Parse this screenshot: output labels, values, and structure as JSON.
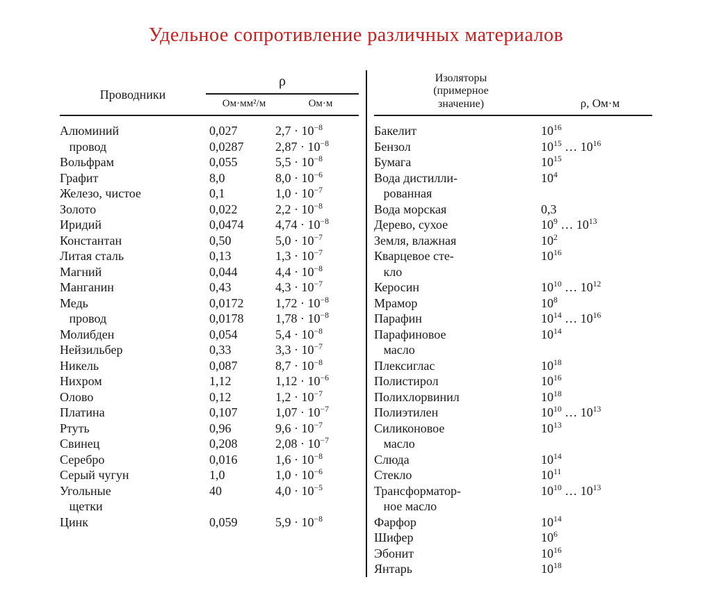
{
  "colors": {
    "title": "#c42020",
    "text": "#1a1a1a",
    "background": "#ffffff",
    "rule": "#1a1a1a"
  },
  "typography": {
    "title_fontsize": 28,
    "body_fontsize": 18,
    "header_fontsize": 18,
    "font_family": "Times New Roman, serif"
  },
  "title": "Удельное сопротивление различных материалов",
  "left": {
    "header_name": "Проводники",
    "rho_symbol": "ρ",
    "unit1": "Ом·мм²/м",
    "unit2": "Ом·м",
    "rows": [
      {
        "name": "Алюминий",
        "v1": "0,027",
        "mant": "2,7",
        "exp": "−8"
      },
      {
        "name": "   провод",
        "v1": "0,0287",
        "mant": "2,87",
        "exp": "−8"
      },
      {
        "name": "Вольфрам",
        "v1": "0,055",
        "mant": "5,5",
        "exp": "−8"
      },
      {
        "name": "Графит",
        "v1": "8,0",
        "mant": "8,0",
        "exp": "−6"
      },
      {
        "name": "Железо, чистое",
        "v1": "0,1",
        "mant": "1,0",
        "exp": "−7"
      },
      {
        "name": "Золото",
        "v1": "0,022",
        "mant": "2,2",
        "exp": "−8"
      },
      {
        "name": "Иридий",
        "v1": "0,0474",
        "mant": "4,74",
        "exp": "−8"
      },
      {
        "name": "Константан",
        "v1": "0,50",
        "mant": "5,0",
        "exp": "−7"
      },
      {
        "name": "Литая сталь",
        "v1": "0,13",
        "mant": "1,3",
        "exp": "−7"
      },
      {
        "name": "Магний",
        "v1": "0,044",
        "mant": "4,4",
        "exp": "−8"
      },
      {
        "name": "Манганин",
        "v1": "0,43",
        "mant": "4,3",
        "exp": "−7"
      },
      {
        "name": "Медь",
        "v1": "0,0172",
        "mant": "1,72",
        "exp": "−8"
      },
      {
        "name": "   провод",
        "v1": "0,0178",
        "mant": "1,78",
        "exp": "−8"
      },
      {
        "name": "Молибден",
        "v1": "0,054",
        "mant": "5,4",
        "exp": "−8"
      },
      {
        "name": "Нейзильбер",
        "v1": "0,33",
        "mant": "3,3",
        "exp": "−7"
      },
      {
        "name": "Никель",
        "v1": "0,087",
        "mant": "8,7",
        "exp": "−8"
      },
      {
        "name": "Нихром",
        "v1": "1,12",
        "mant": "1,12",
        "exp": "−6"
      },
      {
        "name": "Олово",
        "v1": "0,12",
        "mant": "1,2",
        "exp": "−7"
      },
      {
        "name": "Платина",
        "v1": "0,107",
        "mant": "1,07",
        "exp": "−7"
      },
      {
        "name": "Ртуть",
        "v1": "0,96",
        "mant": "9,6",
        "exp": "−7"
      },
      {
        "name": "Свинец",
        "v1": "0,208",
        "mant": "2,08",
        "exp": "−7"
      },
      {
        "name": "Серебро",
        "v1": "0,016",
        "mant": "1,6",
        "exp": "−8"
      },
      {
        "name": "Серый чугун",
        "v1": "1,0",
        "mant": "1,0",
        "exp": "−6"
      },
      {
        "name": "Угольные",
        "v1": "40",
        "mant": "4,0",
        "exp": "−5"
      },
      {
        "name": "   щетки",
        "v1": "",
        "mant": "",
        "exp": ""
      },
      {
        "name": "Цинк",
        "v1": "0,059",
        "mant": "5,9",
        "exp": "−8"
      }
    ]
  },
  "right": {
    "header_name": "Изоляторы\n(примерное\nзначение)",
    "rho_label": "ρ, Ом·м",
    "rows": [
      {
        "name": "Бакелит",
        "exp1": "16",
        "exp2": ""
      },
      {
        "name": "Бензол",
        "exp1": "15",
        "exp2": "16"
      },
      {
        "name": "Бумага",
        "exp1": "15",
        "exp2": ""
      },
      {
        "name": "Вода дистилли-",
        "exp1": "4",
        "exp2": ""
      },
      {
        "name": "   рованная",
        "exp1": "",
        "exp2": ""
      },
      {
        "name": "Вода морская",
        "plain": "0,3"
      },
      {
        "name": "Дерево, сухое",
        "exp1": "9",
        "exp2": "13"
      },
      {
        "name": "Земля, влажная",
        "exp1": "2",
        "exp2": ""
      },
      {
        "name": "Кварцевое сте-",
        "exp1": "16",
        "exp2": ""
      },
      {
        "name": "   кло",
        "exp1": "",
        "exp2": ""
      },
      {
        "name": "Керосин",
        "exp1": "10",
        "exp2": "12"
      },
      {
        "name": "Мрамор",
        "exp1": "8",
        "exp2": ""
      },
      {
        "name": "Парафин",
        "exp1": "14",
        "exp2": "16"
      },
      {
        "name": "Парафиновое",
        "exp1": "14",
        "exp2": ""
      },
      {
        "name": "   масло",
        "exp1": "",
        "exp2": ""
      },
      {
        "name": "Плексиглас",
        "exp1": "18",
        "exp2": ""
      },
      {
        "name": "Полистирол",
        "exp1": "16",
        "exp2": ""
      },
      {
        "name": "Полихлорвинил",
        "exp1": "18",
        "exp2": ""
      },
      {
        "name": "Полиэтилен",
        "exp1": "10",
        "exp2": "13"
      },
      {
        "name": "Силиконовое",
        "exp1": "13",
        "exp2": ""
      },
      {
        "name": "   масло",
        "exp1": "",
        "exp2": ""
      },
      {
        "name": "Слюда",
        "exp1": "14",
        "exp2": ""
      },
      {
        "name": "Стекло",
        "exp1": "11",
        "exp2": ""
      },
      {
        "name": "Трансформатор-",
        "exp1": "10",
        "exp2": "13"
      },
      {
        "name": "   ное масло",
        "exp1": "",
        "exp2": ""
      },
      {
        "name": "Фарфор",
        "exp1": "14",
        "exp2": ""
      },
      {
        "name": "Шифер",
        "exp1": "6",
        "exp2": ""
      },
      {
        "name": "Эбонит",
        "exp1": "16",
        "exp2": ""
      },
      {
        "name": "Янтарь",
        "exp1": "18",
        "exp2": ""
      }
    ]
  }
}
